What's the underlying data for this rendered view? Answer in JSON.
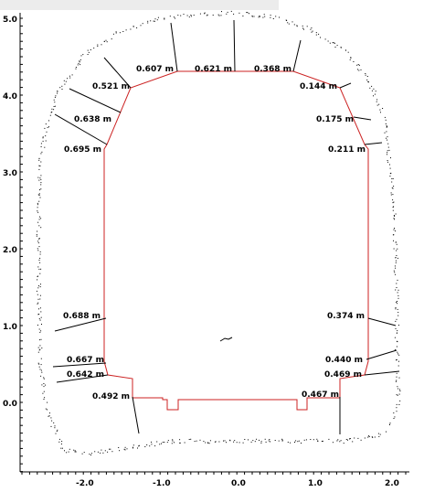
{
  "axes": {
    "x_ticks": [
      "-2.0",
      "-1.0",
      "0.0",
      "1.0",
      "2.0"
    ],
    "y_ticks": [
      "5.0",
      "4.0",
      "3.0",
      "2.0",
      "1.0",
      "0.0"
    ]
  },
  "colors": {
    "design_outline": "#cc2222",
    "scan_points": "#000000",
    "axes": "#000000"
  },
  "measurements": [
    {
      "text": "0.607  m"
    },
    {
      "text": "0.621  m"
    },
    {
      "text": "0.368  m"
    },
    {
      "text": "0.521  m"
    },
    {
      "text": "0.144  m"
    },
    {
      "text": "0.638  m"
    },
    {
      "text": "0.175  m"
    },
    {
      "text": "0.695  m"
    },
    {
      "text": "0.211  m"
    },
    {
      "text": "0.688  m"
    },
    {
      "text": "0.374  m"
    },
    {
      "text": "0.667  m"
    },
    {
      "text": "0.440  m"
    },
    {
      "text": "0.642  m"
    },
    {
      "text": "0.469  m"
    },
    {
      "text": "0.492  m"
    },
    {
      "text": "0.467  m"
    }
  ]
}
